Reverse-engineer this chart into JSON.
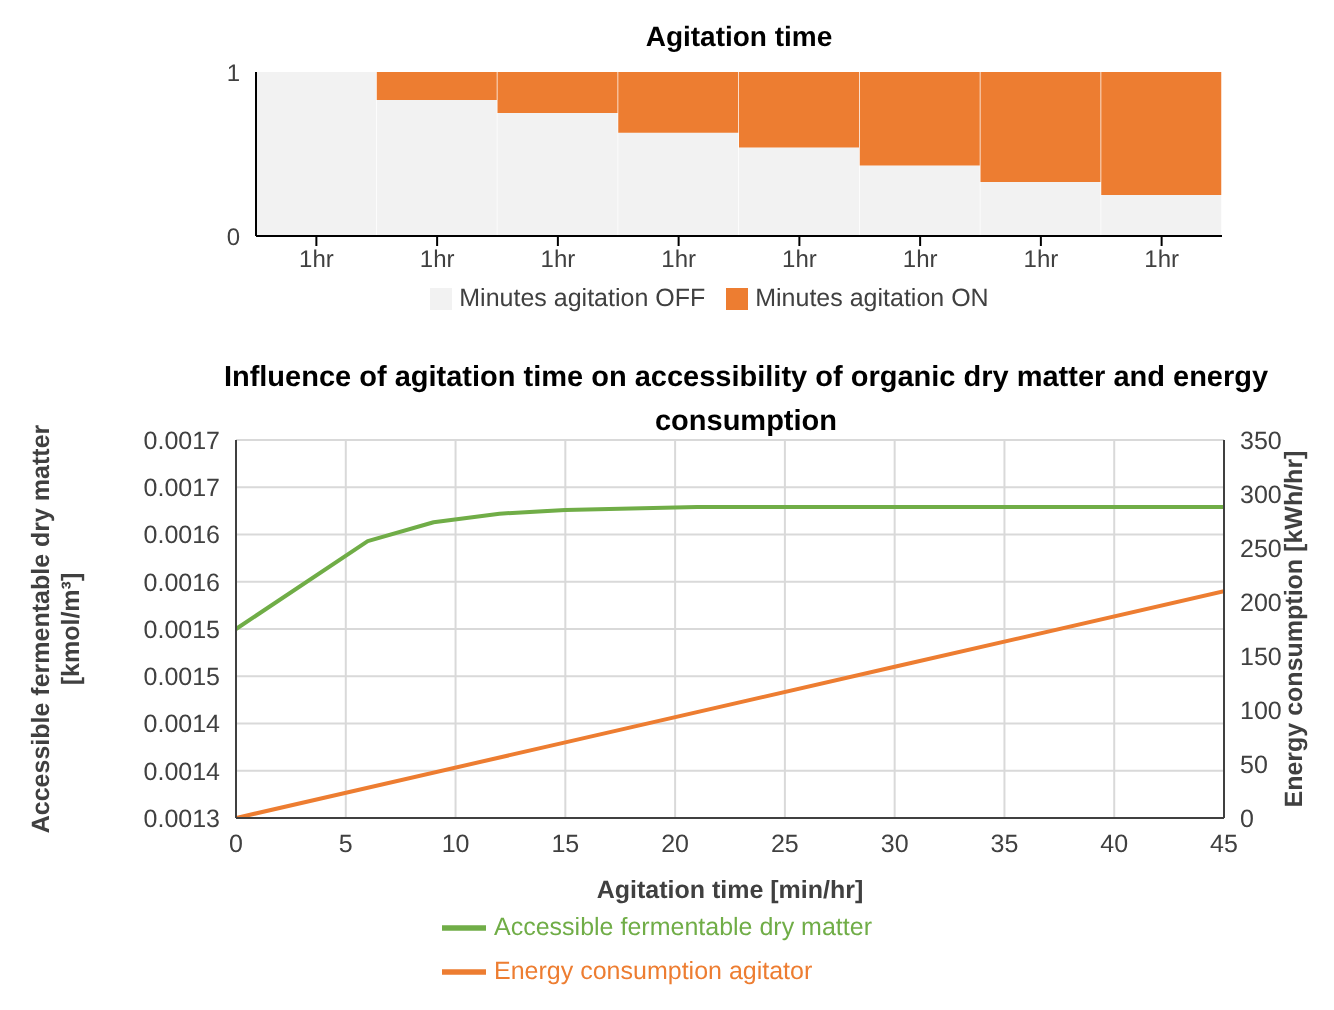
{
  "chart_data": [
    {
      "type": "bar",
      "title": "Agitation time",
      "stacked": true,
      "legend": "bottom",
      "categories": [
        "1hr",
        "1hr",
        "1hr",
        "1hr",
        "1hr",
        "1hr",
        "1hr",
        "1hr"
      ],
      "ylim": [
        0,
        1
      ],
      "yticks": [
        0,
        1
      ],
      "series": [
        {
          "name": "Minutes agitation OFF",
          "color": "#f2f2f2",
          "values": [
            1,
            0.83,
            0.75,
            0.63,
            0.54,
            0.43,
            0.33,
            0.25
          ]
        },
        {
          "name": "Minutes agitation ON",
          "color": "#ed7d31",
          "values": [
            0,
            0.17,
            0.25,
            0.37,
            0.46,
            0.57,
            0.67,
            0.75
          ]
        }
      ]
    },
    {
      "type": "line",
      "title": "Influence of agitation time on accessibility of organic dry matter and energy consumption",
      "xlabel": "Agitation time [min/hr]",
      "ylabel": "Accessible fermentable dry matter [kmol/m³]",
      "y2label": "Energy consumption  [kWh/hr]",
      "legend": "bottom",
      "grid": true,
      "marker": "none",
      "line_style": "solid",
      "xlim": [
        0,
        45
      ],
      "xticks": [
        0,
        5,
        10,
        15,
        20,
        25,
        30,
        35,
        40,
        45
      ],
      "ylim": [
        0.0013,
        0.0017
      ],
      "yticks": [
        {
          "value": 0.0013,
          "label": "0.0013"
        },
        {
          "value": 0.00135,
          "label": "0.0014"
        },
        {
          "value": 0.0014,
          "label": "0.0014"
        },
        {
          "value": 0.00145,
          "label": "0.0015"
        },
        {
          "value": 0.0015,
          "label": "0.0015"
        },
        {
          "value": 0.00155,
          "label": "0.0016"
        },
        {
          "value": 0.0016,
          "label": "0.0016"
        },
        {
          "value": 0.00165,
          "label": "0.0017"
        },
        {
          "value": 0.0017,
          "label": "0.0017"
        }
      ],
      "y2lim": [
        0,
        350
      ],
      "y2ticks": [
        0,
        50,
        100,
        150,
        200,
        250,
        300,
        350
      ],
      "series": [
        {
          "name": "Accessible fermentable dry matter",
          "color": "#70ad47",
          "x": [
            0,
            6,
            9,
            12,
            15,
            21,
            30,
            45
          ],
          "values": [
            0.0015,
            0.001593,
            0.001613,
            0.001622,
            0.001626,
            0.001629,
            0.001629,
            0.001629
          ]
        },
        {
          "name": "Energy consumption agitator",
          "color": "#ed7d31",
          "axis": "y2",
          "x": [
            0,
            15,
            30,
            45
          ],
          "values": [
            0,
            70,
            140,
            210
          ]
        }
      ]
    }
  ]
}
